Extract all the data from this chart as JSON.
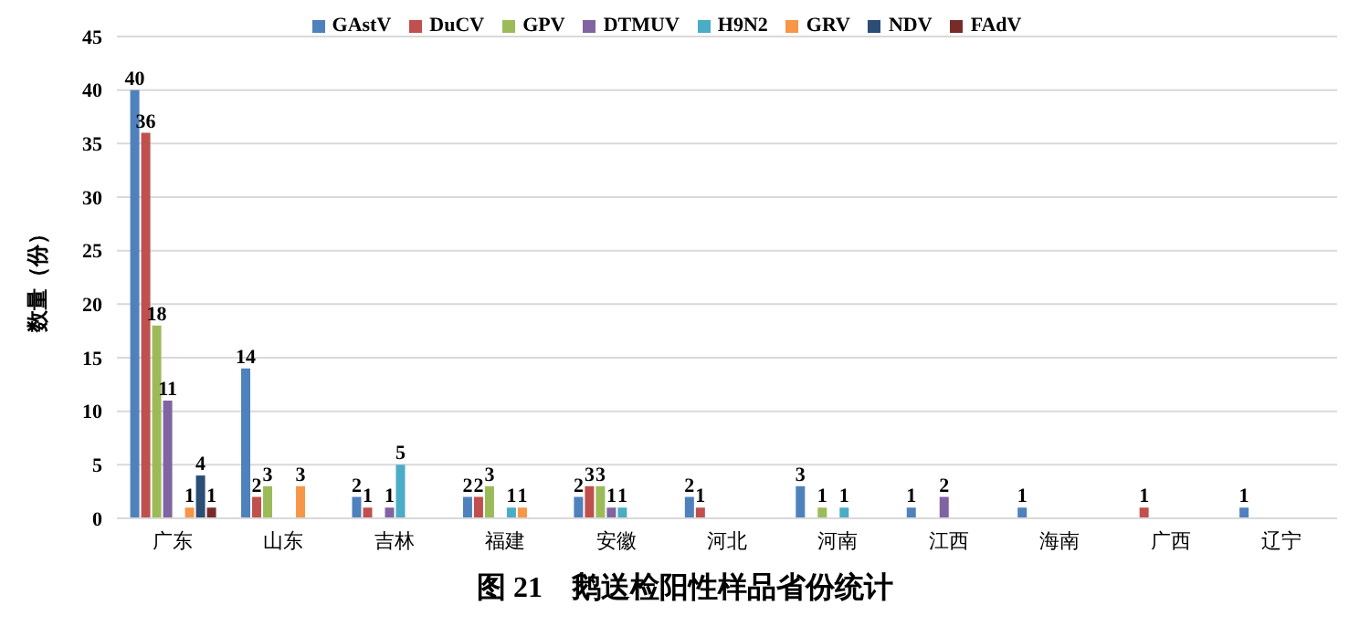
{
  "chart_data": {
    "type": "bar",
    "title": "图 21　鹅送检阳性样品省份统计",
    "ylabel": "数量（份）",
    "categories": [
      "广东",
      "山东",
      "吉林",
      "福建",
      "安徽",
      "河北",
      "河南",
      "江西",
      "海南",
      "广西",
      "辽宁"
    ],
    "series": [
      {
        "name": "GAstV",
        "color": "#4f81bd",
        "values": [
          40,
          14,
          2,
          2,
          2,
          2,
          3,
          1,
          1,
          null,
          1
        ]
      },
      {
        "name": "DuCV",
        "color": "#c0504d",
        "values": [
          36,
          2,
          1,
          2,
          3,
          1,
          null,
          null,
          null,
          1,
          null
        ]
      },
      {
        "name": "GPV",
        "color": "#9bbb59",
        "values": [
          18,
          3,
          null,
          3,
          3,
          null,
          1,
          null,
          null,
          null,
          null
        ]
      },
      {
        "name": "DTMUV",
        "color": "#8064a2",
        "values": [
          11,
          null,
          1,
          null,
          1,
          null,
          null,
          2,
          null,
          null,
          null
        ]
      },
      {
        "name": "H9N2",
        "color": "#4bacc6",
        "values": [
          null,
          null,
          5,
          1,
          1,
          null,
          1,
          null,
          null,
          null,
          null
        ]
      },
      {
        "name": "GRV",
        "color": "#f79646",
        "values": [
          1,
          3,
          null,
          1,
          null,
          null,
          null,
          null,
          null,
          null,
          null
        ]
      },
      {
        "name": "NDV",
        "color": "#2c4d75",
        "values": [
          4,
          null,
          null,
          null,
          null,
          null,
          null,
          null,
          null,
          null,
          null
        ]
      },
      {
        "name": "FAdV",
        "color": "#772c2a",
        "values": [
          1,
          null,
          null,
          null,
          null,
          null,
          null,
          null,
          null,
          null,
          null
        ]
      }
    ],
    "ylim": [
      0,
      45
    ],
    "yticks": [
      0,
      5,
      10,
      15,
      20,
      25,
      30,
      35,
      40,
      45
    ],
    "grid": "y",
    "legend": "top",
    "data_labels": true
  }
}
